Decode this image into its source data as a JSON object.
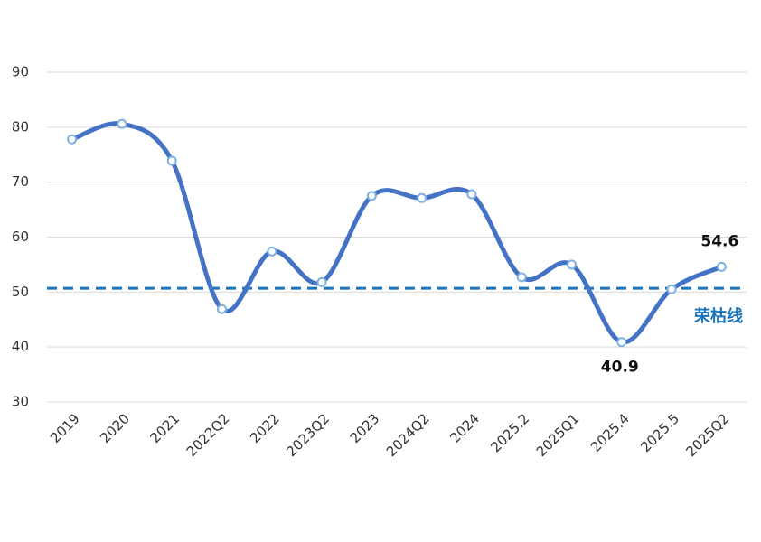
{
  "chart_data": {
    "type": "line",
    "categories": [
      "2019",
      "2020",
      "2021",
      "2022Q2",
      "2022",
      "2023Q2",
      "2023",
      "2024Q2",
      "2024",
      "2025.2",
      "2025Q1",
      "2025.4",
      "2025.5",
      "2025Q2"
    ],
    "values": [
      77.8,
      80.6,
      73.9,
      46.9,
      57.4,
      51.8,
      67.5,
      67.1,
      67.8,
      52.7,
      55.0,
      40.9,
      50.5,
      54.6
    ],
    "value_labels": [
      null,
      null,
      null,
      null,
      null,
      null,
      null,
      null,
      null,
      null,
      null,
      "40.9",
      null,
      "54.6"
    ],
    "color": "#4472c4",
    "marker_color": "#7fb2e0",
    "ylim": [
      30,
      90
    ],
    "yticks": [
      30,
      40,
      50,
      60,
      70,
      80,
      90
    ],
    "grid": true,
    "smooth": true,
    "reference_line": {
      "value": 50.7,
      "label": "荣枯线",
      "color": "#1a75bc",
      "dashed": true
    }
  }
}
